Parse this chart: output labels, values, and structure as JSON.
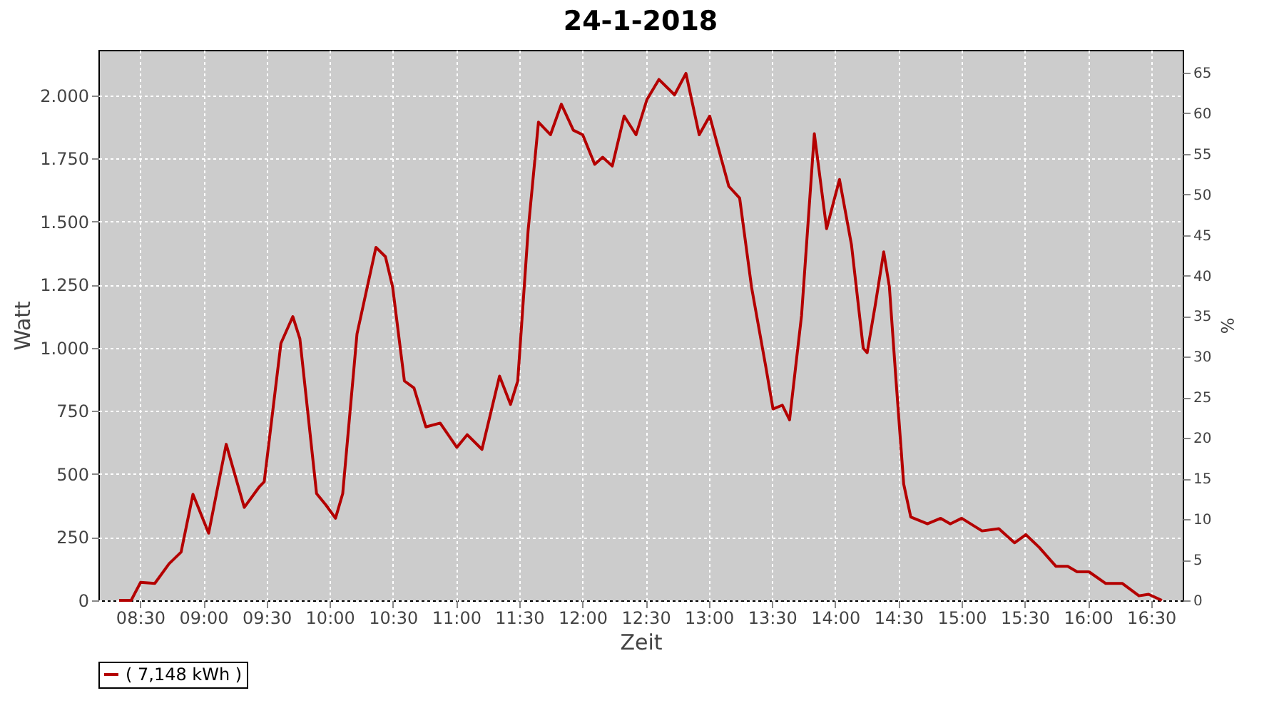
{
  "chart_data": {
    "type": "line",
    "title": "24-1-2018",
    "xlabel": "Zeit",
    "ylabel": "Watt",
    "y2label": "%",
    "x": [
      8.334,
      8.429,
      8.503,
      8.616,
      8.729,
      8.824,
      8.918,
      9.042,
      9.181,
      9.324,
      9.445,
      9.482,
      9.614,
      9.708,
      9.764,
      9.896,
      9.971,
      10.046,
      10.103,
      10.216,
      10.366,
      10.441,
      10.498,
      10.591,
      10.667,
      10.761,
      10.874,
      11.006,
      11.088,
      11.205,
      11.344,
      11.431,
      11.488,
      11.57,
      11.652,
      11.747,
      11.833,
      11.928,
      12.002,
      12.097,
      12.16,
      12.236,
      12.33,
      12.424,
      12.51,
      12.605,
      12.729,
      12.819,
      12.924,
      13.007,
      13.158,
      13.244,
      13.338,
      13.451,
      13.508,
      13.582,
      13.639,
      13.734,
      13.835,
      13.932,
      14.034,
      14.129,
      14.222,
      14.253,
      14.316,
      14.384,
      14.429,
      14.479,
      14.542,
      14.598,
      14.73,
      14.835,
      14.911,
      15.001,
      15.162,
      15.295,
      15.419,
      15.509,
      15.614,
      15.746,
      15.84,
      15.915,
      16.009,
      16.141,
      16.273,
      16.404,
      16.48,
      16.585
    ],
    "series": [
      {
        "name": "( 7,148 kWh )",
        "color": "#b40000",
        "values": [
          0,
          0,
          71,
          67,
          145,
          191,
          420,
          266,
          618,
          368,
          451,
          470,
          1018,
          1124,
          1036,
          423,
          377,
          325,
          423,
          1055,
          1398,
          1361,
          1241,
          869,
          841,
          687,
          702,
          606,
          656,
          598,
          888,
          776,
          869,
          1464,
          1894,
          1844,
          1965,
          1862,
          1844,
          1727,
          1755,
          1720,
          1918,
          1844,
          1983,
          2063,
          2002,
          2087,
          1844,
          1918,
          1640,
          1593,
          1241,
          925,
          758,
          773,
          715,
          1129,
          1848,
          1472,
          1667,
          1408,
          999,
          981,
          1166,
          1380,
          1241,
          888,
          461,
          330,
          303,
          325,
          303,
          325,
          275,
          284,
          228,
          260,
          210,
          135,
          135,
          113,
          113,
          67,
          67,
          18,
          24,
          0
        ]
      }
    ],
    "xlim": [
      8.17,
      16.75
    ],
    "xticks": [
      {
        "value": 8.5,
        "label": "08:30"
      },
      {
        "value": 9,
        "label": "09:00"
      },
      {
        "value": 9.5,
        "label": "09:30"
      },
      {
        "value": 10,
        "label": "10:00"
      },
      {
        "value": 10.5,
        "label": "10:30"
      },
      {
        "value": 11,
        "label": "11:00"
      },
      {
        "value": 11.5,
        "label": "11:30"
      },
      {
        "value": 12,
        "label": "12:00"
      },
      {
        "value": 12.5,
        "label": "12:30"
      },
      {
        "value": 13,
        "label": "13:00"
      },
      {
        "value": 13.5,
        "label": "13:30"
      },
      {
        "value": 14,
        "label": "14:00"
      },
      {
        "value": 14.5,
        "label": "14:30"
      },
      {
        "value": 15,
        "label": "15:00"
      },
      {
        "value": 15.5,
        "label": "15:30"
      },
      {
        "value": 16,
        "label": "16:00"
      },
      {
        "value": 16.5,
        "label": "16:30"
      }
    ],
    "ylim": [
      0,
      2180
    ],
    "yticks": [
      0,
      250,
      500,
      750,
      {
        "value": 1000,
        "label": "1.000"
      },
      {
        "value": 1250,
        "label": "1.250"
      },
      {
        "value": 1500,
        "label": "1.500"
      },
      {
        "value": 1750,
        "label": "1.750"
      },
      {
        "value": 2000,
        "label": "2.000"
      }
    ],
    "y2lim": [
      0,
      67.8
    ],
    "y2ticks": [
      0,
      5,
      10,
      15,
      20,
      25,
      30,
      35,
      40,
      45,
      50,
      55,
      60,
      65
    ],
    "grid": true,
    "legend": "bottom",
    "line_style": "solid",
    "marker": "none"
  }
}
